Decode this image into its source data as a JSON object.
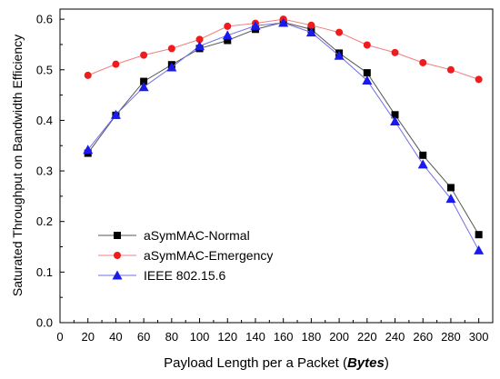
{
  "chart_data": {
    "type": "line",
    "title": "",
    "xlabel": "Payload Length per a Packet (",
    "xlabel_unit": "Bytes",
    "xlabel_close": ")",
    "ylabel": "Saturated Throughput on Bandwidth Efficiency",
    "xlim": [
      0,
      310
    ],
    "ylim": [
      0.0,
      0.62
    ],
    "xticks": [
      0,
      20,
      40,
      60,
      80,
      100,
      120,
      140,
      160,
      180,
      200,
      220,
      240,
      260,
      280,
      300
    ],
    "yticks": [
      "0.0",
      "0.1",
      "0.2",
      "0.3",
      "0.4",
      "0.5",
      "0.6"
    ],
    "yticks_values": [
      0.0,
      0.1,
      0.2,
      0.3,
      0.4,
      0.5,
      0.6
    ],
    "grid": false,
    "legend_position": "lower-left",
    "x": [
      20,
      40,
      60,
      80,
      100,
      120,
      140,
      160,
      180,
      200,
      220,
      240,
      260,
      280,
      300
    ],
    "series": [
      {
        "name": "aSymMAC-Normal",
        "marker": "square",
        "color": "#000000",
        "line_color": "#555555",
        "values": [
          0.335,
          0.41,
          0.477,
          0.51,
          0.542,
          0.558,
          0.58,
          0.594,
          0.58,
          0.533,
          0.494,
          0.411,
          0.331,
          0.267,
          0.174
        ]
      },
      {
        "name": "aSymMAC-Emergency",
        "marker": "circle",
        "color": "#ee1c1c",
        "line_color": "#f08080",
        "values": [
          0.489,
          0.511,
          0.529,
          0.542,
          0.56,
          0.586,
          0.592,
          0.6,
          0.588,
          0.574,
          0.549,
          0.534,
          0.514,
          0.5,
          0.481
        ]
      },
      {
        "name": "IEEE 802.15.6",
        "marker": "triangle",
        "color": "#1a1aee",
        "line_color": "#6f6fee",
        "values": [
          0.342,
          0.411,
          0.466,
          0.505,
          0.547,
          0.568,
          0.587,
          0.593,
          0.574,
          0.528,
          0.479,
          0.398,
          0.313,
          0.245,
          0.143
        ]
      }
    ]
  }
}
